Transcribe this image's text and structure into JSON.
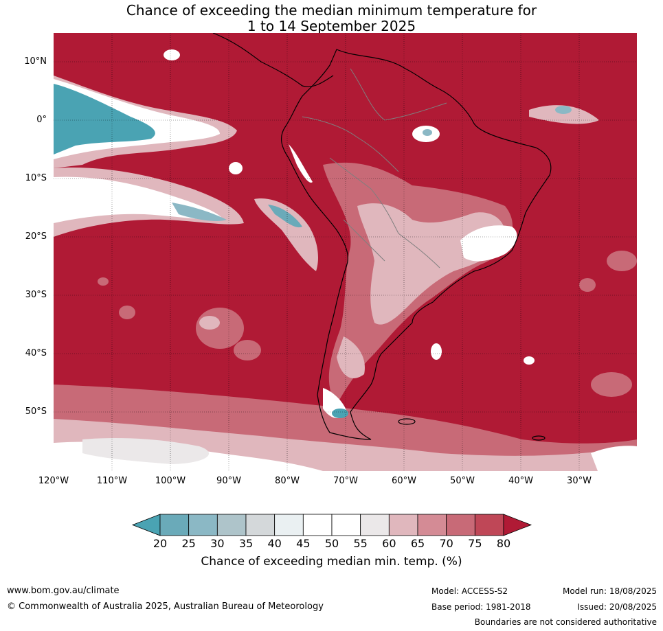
{
  "title": {
    "line1": "Chance of exceeding the median minimum temperature for",
    "line2": "1 to 14 September 2025"
  },
  "map": {
    "lat_labels": [
      "10°N",
      "0°",
      "10°S",
      "20°S",
      "30°S",
      "40°S",
      "50°S"
    ],
    "lon_labels": [
      "120°W",
      "110°W",
      "100°W",
      "90°W",
      "80°W",
      "70°W",
      "60°W",
      "50°W",
      "40°W",
      "30°W"
    ],
    "colors": {
      "ocean_dominant": "#b01a35",
      "coastline": "#000000",
      "borders": "#7f7f7f"
    }
  },
  "colorbar": {
    "ticks": [
      "20",
      "25",
      "30",
      "35",
      "40",
      "45",
      "50",
      "55",
      "60",
      "65",
      "70",
      "75",
      "80"
    ],
    "colors": [
      "#4aa3b3",
      "#6aaab9",
      "#8bb8c5",
      "#aec4ca",
      "#d4d8da",
      "#eaf0f2",
      "#ffffff",
      "#ffffff",
      "#ebe8e9",
      "#e0b7bd",
      "#d48b95",
      "#c86a77",
      "#bf4757",
      "#b01a35"
    ],
    "label": "Chance of exceeding median min. temp. (%)"
  },
  "footer": {
    "website": "www.bom.gov.au/climate",
    "copyright": "© Commonwealth of Australia 2025, Australian Bureau of Meteorology",
    "model": "Model: ACCESS-S2",
    "base_period": "Base period: 1981-2018",
    "model_run": "Model run: 18/08/2025",
    "issued": "Issued: 20/08/2025",
    "disclaimer": "Boundaries are not considered authoritative"
  }
}
